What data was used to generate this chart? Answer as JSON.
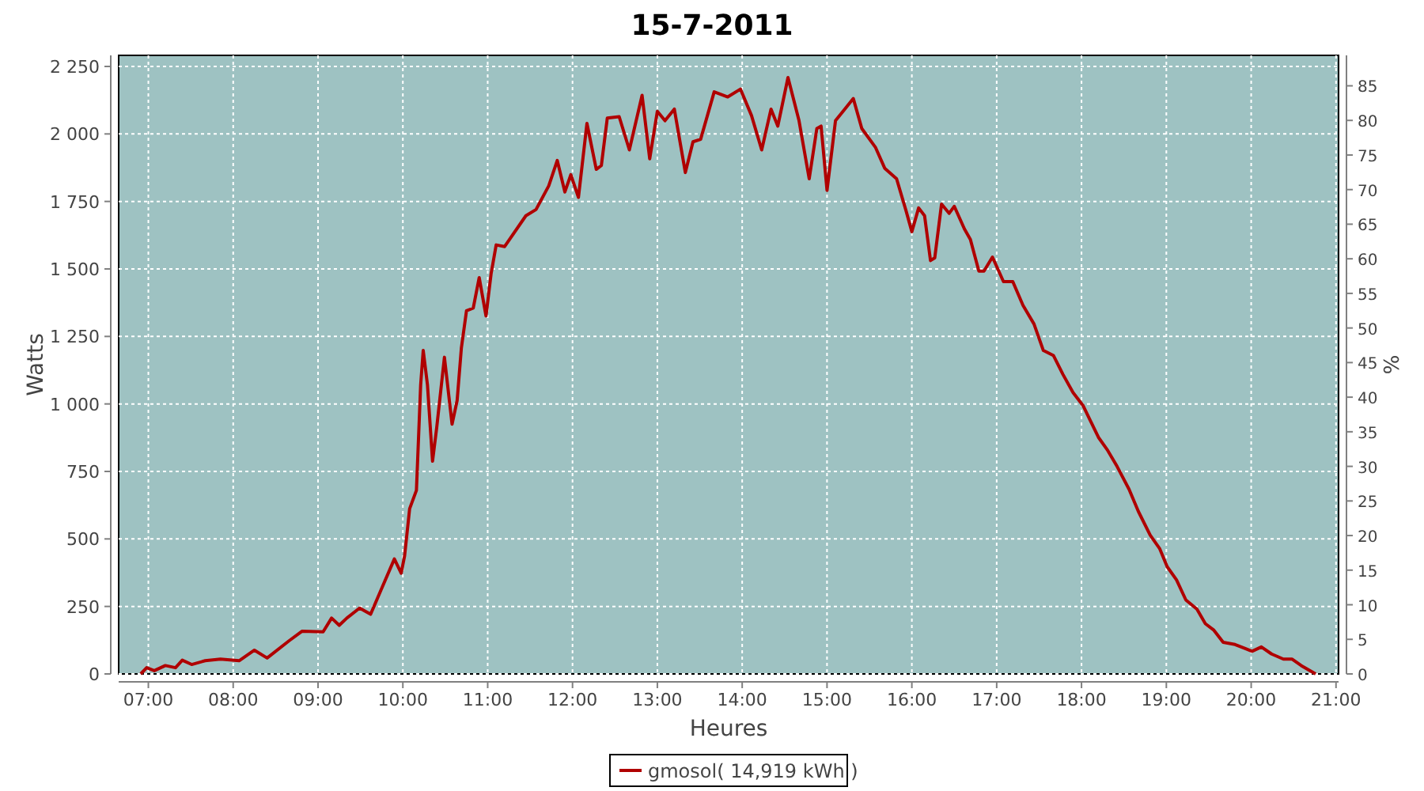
{
  "chart_data": {
    "type": "line",
    "title": "15-7-2011",
    "xlabel": "Heures",
    "ylabel": "Watts",
    "y2label": "%",
    "xlim": [
      6.65,
      21.03
    ],
    "xticks": [
      {
        "value": 7,
        "label": "07:00"
      },
      {
        "value": 8,
        "label": "08:00"
      },
      {
        "value": 9,
        "label": "09:00"
      },
      {
        "value": 10,
        "label": "10:00"
      },
      {
        "value": 11,
        "label": "11:00"
      },
      {
        "value": 12,
        "label": "12:00"
      },
      {
        "value": 13,
        "label": "13:00"
      },
      {
        "value": 14,
        "label": "14:00"
      },
      {
        "value": 15,
        "label": "15:00"
      },
      {
        "value": 16,
        "label": "16:00"
      },
      {
        "value": 17,
        "label": "17:00"
      },
      {
        "value": 18,
        "label": "18:00"
      },
      {
        "value": 19,
        "label": "19:00"
      },
      {
        "value": 20,
        "label": "20:00"
      },
      {
        "value": 21,
        "label": "21:00"
      }
    ],
    "ylim": [
      0,
      2291
    ],
    "yticks": [
      0,
      250,
      500,
      750,
      {
        "value": 1000,
        "label": "1 000"
      },
      {
        "value": 1250,
        "label": "1 250"
      },
      {
        "value": 1500,
        "label": "1 500"
      },
      {
        "value": 1750,
        "label": "1 750"
      },
      {
        "value": 2000,
        "label": "2 000"
      },
      {
        "value": 2250,
        "label": "2 250"
      }
    ],
    "y2lim": [
      0,
      89.4
    ],
    "y2ticks": [
      0,
      5,
      10,
      15,
      20,
      25,
      30,
      35,
      40,
      45,
      50,
      55,
      60,
      65,
      70,
      75,
      80,
      85
    ],
    "grid": true,
    "legend": "bottom",
    "line_style": "solid",
    "marker": "none",
    "series": [
      {
        "name": "gmosol( 14,919 kWh )",
        "color": "#b00000",
        "x": [
          6.91,
          6.98,
          7.07,
          7.2,
          7.32,
          7.4,
          7.51,
          7.67,
          7.85,
          8.07,
          8.25,
          8.4,
          8.66,
          8.81,
          9.06,
          9.16,
          9.25,
          9.34,
          9.49,
          9.62,
          9.74,
          9.9,
          9.98,
          10.02,
          10.08,
          10.16,
          10.21,
          10.24,
          10.29,
          10.35,
          10.4,
          10.49,
          10.58,
          10.64,
          10.69,
          10.75,
          10.83,
          10.9,
          10.98,
          11.04,
          11.1,
          11.2,
          11.45,
          11.57,
          11.72,
          11.82,
          11.91,
          11.98,
          12.07,
          12.17,
          12.28,
          12.34,
          12.41,
          12.55,
          12.67,
          12.82,
          12.91,
          13.0,
          13.09,
          13.2,
          13.33,
          13.42,
          13.51,
          13.67,
          13.83,
          13.98,
          14.11,
          14.23,
          14.34,
          14.42,
          14.54,
          14.67,
          14.79,
          14.88,
          14.93,
          15.0,
          15.1,
          15.2,
          15.31,
          15.41,
          15.57,
          15.68,
          15.82,
          15.93,
          16.0,
          16.08,
          16.15,
          16.22,
          16.27,
          16.35,
          16.44,
          16.5,
          16.62,
          16.69,
          16.79,
          16.85,
          16.95,
          17.08,
          17.19,
          17.31,
          17.44,
          17.55,
          17.67,
          17.78,
          17.9,
          18.02,
          18.11,
          18.2,
          18.31,
          18.42,
          18.56,
          18.67,
          18.81,
          18.92,
          19.01,
          19.12,
          19.23,
          19.36,
          19.46,
          19.56,
          19.67,
          19.81,
          19.93,
          20.01,
          20.12,
          20.24,
          20.38,
          20.48,
          20.59,
          20.76
        ],
        "values": [
          0,
          23,
          12,
          31,
          23,
          51,
          35,
          49,
          55,
          49,
          88,
          59,
          123,
          158,
          156,
          207,
          180,
          207,
          244,
          221,
          309,
          426,
          373,
          436,
          612,
          680,
          1071,
          1198,
          1071,
          788,
          915,
          1173,
          925,
          1013,
          1208,
          1345,
          1355,
          1468,
          1326,
          1482,
          1589,
          1583,
          1697,
          1720,
          1808,
          1902,
          1785,
          1849,
          1765,
          2039,
          1869,
          1883,
          2059,
          2064,
          1941,
          2143,
          1908,
          2084,
          2049,
          2092,
          1857,
          1971,
          1980,
          2156,
          2137,
          2166,
          2068,
          1941,
          2092,
          2029,
          2209,
          2049,
          1834,
          2020,
          2029,
          1791,
          2049,
          2088,
          2131,
          2020,
          1951,
          1873,
          1834,
          1717,
          1638,
          1726,
          1697,
          1531,
          1541,
          1740,
          1706,
          1732,
          1648,
          1609,
          1492,
          1492,
          1544,
          1453,
          1453,
          1365,
          1296,
          1198,
          1179,
          1110,
          1042,
          993,
          934,
          876,
          827,
          768,
          684,
          602,
          514,
          465,
          397,
          348,
          274,
          240,
          186,
          162,
          117,
          109,
          94,
          84,
          100,
          74,
          55,
          55,
          31,
          0
        ]
      }
    ]
  }
}
